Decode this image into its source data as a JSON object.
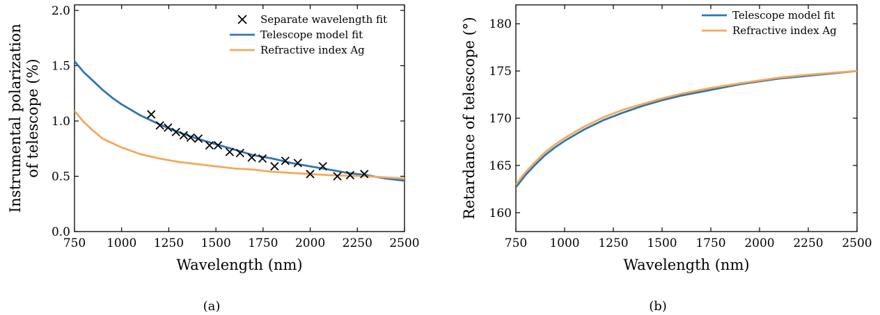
{
  "chart_data": [
    {
      "type": "line",
      "caption": "(a)",
      "xlabel": "Wavelength (nm)",
      "ylabel": [
        "Instrumental polarization",
        "of telescope (%)"
      ],
      "xlim": [
        750,
        2500
      ],
      "ylim": [
        0.0,
        2.05
      ],
      "xticks": [
        750,
        1000,
        1250,
        1500,
        1750,
        2000,
        2250,
        2500
      ],
      "xtick_labels": [
        "750",
        "1000",
        "1250",
        "1500",
        "1750",
        "2000",
        "2250",
        "2500"
      ],
      "yticks": [
        0.0,
        0.5,
        1.0,
        1.5,
        2.0
      ],
      "ytick_labels": [
        "0.0",
        "0.5",
        "1.0",
        "1.5",
        "2.0"
      ],
      "grid": false,
      "legend": "top-right",
      "series": [
        {
          "name": "Separate wavelength fit",
          "kind": "scatter",
          "marker": "x",
          "color": "#000000",
          "x": [
            1157,
            1203,
            1246,
            1288,
            1329,
            1366,
            1407,
            1466,
            1511,
            1573,
            1628,
            1690,
            1747,
            1811,
            1868,
            1934,
            2000,
            2067,
            2144,
            2212,
            2287
          ],
          "y": [
            1.06,
            0.96,
            0.94,
            0.9,
            0.87,
            0.85,
            0.84,
            0.78,
            0.78,
            0.72,
            0.71,
            0.67,
            0.66,
            0.59,
            0.64,
            0.62,
            0.52,
            0.59,
            0.5,
            0.51,
            0.52
          ]
        },
        {
          "name": "Telescope model fit",
          "kind": "line",
          "color": "#3274b0",
          "x": [
            750,
            800,
            850,
            900,
            950,
            1000,
            1100,
            1200,
            1300,
            1400,
            1500,
            1600,
            1700,
            1800,
            1900,
            2000,
            2100,
            2200,
            2300,
            2400,
            2500
          ],
          "y": [
            1.54,
            1.44,
            1.36,
            1.28,
            1.21,
            1.15,
            1.05,
            0.97,
            0.9,
            0.84,
            0.79,
            0.74,
            0.69,
            0.66,
            0.62,
            0.59,
            0.56,
            0.53,
            0.51,
            0.48,
            0.46
          ]
        },
        {
          "name": "Refractive index Ag",
          "kind": "line",
          "color": "#f4a95a",
          "x": [
            750,
            800,
            850,
            900,
            1000,
            1100,
            1200,
            1300,
            1400,
            1500,
            1600,
            1700,
            1800,
            1900,
            2000,
            2100,
            2200,
            2300,
            2400,
            2500
          ],
          "y": [
            1.09,
            0.99,
            0.91,
            0.84,
            0.76,
            0.7,
            0.66,
            0.63,
            0.61,
            0.59,
            0.57,
            0.56,
            0.54,
            0.53,
            0.52,
            0.51,
            0.505,
            0.5,
            0.49,
            0.48
          ]
        }
      ]
    },
    {
      "type": "line",
      "caption": "(b)",
      "xlabel": "Wavelength (nm)",
      "ylabel": [
        "Retardance of telescope (°)"
      ],
      "xlim": [
        750,
        2500
      ],
      "ylim": [
        158,
        182
      ],
      "xticks": [
        750,
        1000,
        1250,
        1500,
        1750,
        2000,
        2250,
        2500
      ],
      "xtick_labels": [
        "750",
        "1000",
        "1250",
        "1500",
        "1750",
        "2000",
        "2250",
        "2500"
      ],
      "yticks": [
        160,
        165,
        170,
        175,
        180
      ],
      "ytick_labels": [
        "160",
        "165",
        "170",
        "175",
        "180"
      ],
      "grid": false,
      "legend": "top-right",
      "series": [
        {
          "name": "Telescope model fit",
          "kind": "line",
          "color": "#3274b0",
          "x": [
            750,
            800,
            850,
            900,
            950,
            1000,
            1100,
            1200,
            1300,
            1400,
            1500,
            1600,
            1750,
            1900,
            2000,
            2100,
            2250,
            2400,
            2500
          ],
          "y": [
            162.7,
            164.0,
            165.1,
            166.1,
            166.9,
            167.6,
            168.8,
            169.8,
            170.6,
            171.3,
            171.9,
            172.4,
            173.0,
            173.6,
            173.9,
            174.2,
            174.5,
            174.8,
            175.0
          ]
        },
        {
          "name": "Refractive index Ag",
          "kind": "line",
          "color": "#f4a95a",
          "x": [
            750,
            800,
            850,
            900,
            950,
            1000,
            1100,
            1200,
            1300,
            1400,
            1500,
            1600,
            1750,
            1900,
            2000,
            2100,
            2250,
            2400,
            2500
          ],
          "y": [
            163.0,
            164.3,
            165.4,
            166.4,
            167.2,
            167.9,
            169.1,
            170.1,
            170.9,
            171.5,
            172.1,
            172.6,
            173.2,
            173.7,
            174.0,
            174.3,
            174.6,
            174.85,
            175.0
          ]
        }
      ]
    }
  ]
}
